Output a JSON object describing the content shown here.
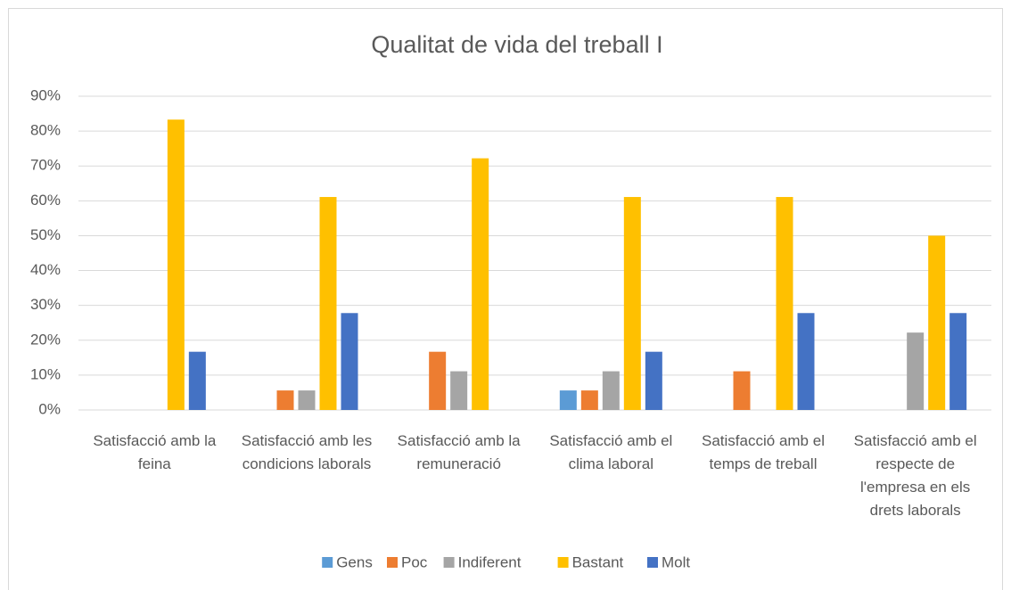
{
  "chart_data": {
    "type": "bar",
    "title": "Qualitat de vida del treball I",
    "categories": [
      "Satisfacció amb la feina",
      "Satisfacció amb les condicions laborals",
      "Satisfacció amb la remuneració",
      "Satisfacció amb el clima laboral",
      "Satisfacció amb el temps de treball",
      "Satisfacció amb el respecte de l'empresa en els drets laborals"
    ],
    "series": [
      {
        "name": "Gens",
        "color": "#5b9bd5",
        "values": [
          0,
          0,
          0,
          5.6,
          0,
          0
        ]
      },
      {
        "name": "Poc",
        "color": "#ed7d31",
        "values": [
          0,
          5.6,
          16.7,
          5.6,
          11.1,
          0
        ]
      },
      {
        "name": "Indiferent",
        "color": "#a5a5a5",
        "values": [
          0,
          5.6,
          11.1,
          11.1,
          0,
          22.2
        ]
      },
      {
        "name": "Bastant",
        "color": "#ffc000",
        "values": [
          83.3,
          61.1,
          72.2,
          61.1,
          61.1,
          50
        ]
      },
      {
        "name": "Molt",
        "color": "#4472c4",
        "values": [
          16.7,
          27.8,
          0,
          16.7,
          27.8,
          27.8
        ]
      }
    ],
    "ylim": [
      0,
      90
    ],
    "yticks": [
      {
        "value": 0,
        "label": "0%"
      },
      {
        "value": 10,
        "label": "10%"
      },
      {
        "value": 20,
        "label": "20%"
      },
      {
        "value": 30,
        "label": "30%"
      },
      {
        "value": 40,
        "label": "40%"
      },
      {
        "value": 50,
        "label": "50%"
      },
      {
        "value": 60,
        "label": "60%"
      },
      {
        "value": 70,
        "label": "70%"
      },
      {
        "value": 80,
        "label": "80%"
      },
      {
        "value": 90,
        "label": "90%"
      }
    ],
    "grid": true,
    "legend": "bottom"
  }
}
